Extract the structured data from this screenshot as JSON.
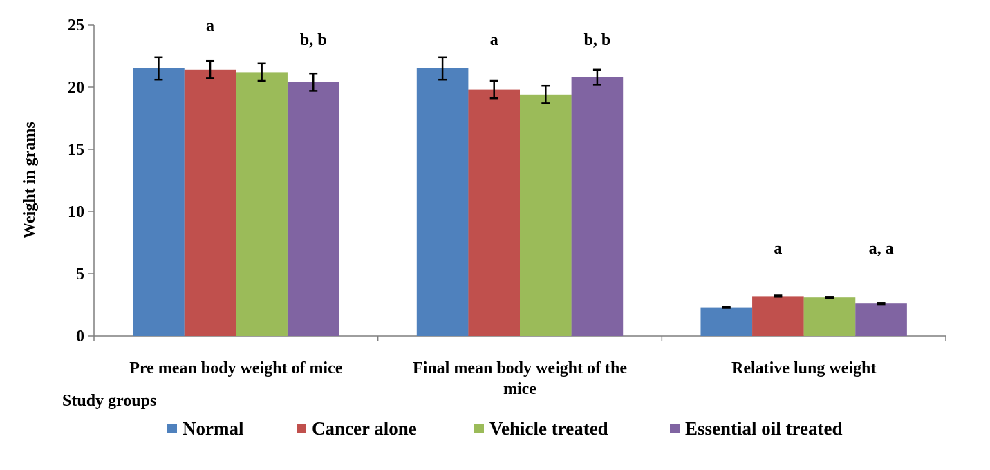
{
  "chart_data": {
    "type": "bar",
    "ylabel": "Weight in grams",
    "xlabel": "Study groups",
    "ylim": [
      0,
      25
    ],
    "yticks": [
      "0",
      "5",
      "10",
      "15",
      "20",
      "25"
    ],
    "grid": false,
    "legend_position": "bottom",
    "categories": [
      [
        "Pre mean body weight of mice"
      ],
      [
        "Final  mean body weight of the",
        "mice"
      ],
      [
        "Relative lung weight"
      ]
    ],
    "series": [
      {
        "name": "Normal",
        "color": "#4F81BD",
        "values": [
          21.5,
          21.5,
          2.3
        ],
        "errors": [
          0.9,
          0.9,
          0.05
        ]
      },
      {
        "name": "Cancer alone",
        "color": "#C0504D",
        "values": [
          21.4,
          19.8,
          3.2
        ],
        "errors": [
          0.7,
          0.7,
          0.05
        ]
      },
      {
        "name": "Vehicle treated",
        "color": "#9BBB59",
        "values": [
          21.2,
          19.4,
          3.1
        ],
        "errors": [
          0.7,
          0.7,
          0.05
        ]
      },
      {
        "name": "Essential oil treated",
        "color": "#8064A2",
        "values": [
          20.4,
          20.8,
          2.6
        ],
        "errors": [
          0.7,
          0.6,
          0.05
        ]
      }
    ],
    "annotations": [
      {
        "text": "a",
        "category": 0,
        "series": 1,
        "y": 24.5
      },
      {
        "text": "b, b",
        "category": 0,
        "series": 3,
        "y": 23.4
      },
      {
        "text": "a",
        "category": 1,
        "series": 1,
        "y": 23.4
      },
      {
        "text": "b, b",
        "category": 1,
        "series": 3,
        "y": 23.4
      },
      {
        "text": "a",
        "category": 2,
        "series": 1,
        "y": 6.6
      },
      {
        "text": "a, a",
        "category": 2,
        "series": 3,
        "y": 6.6
      }
    ]
  }
}
